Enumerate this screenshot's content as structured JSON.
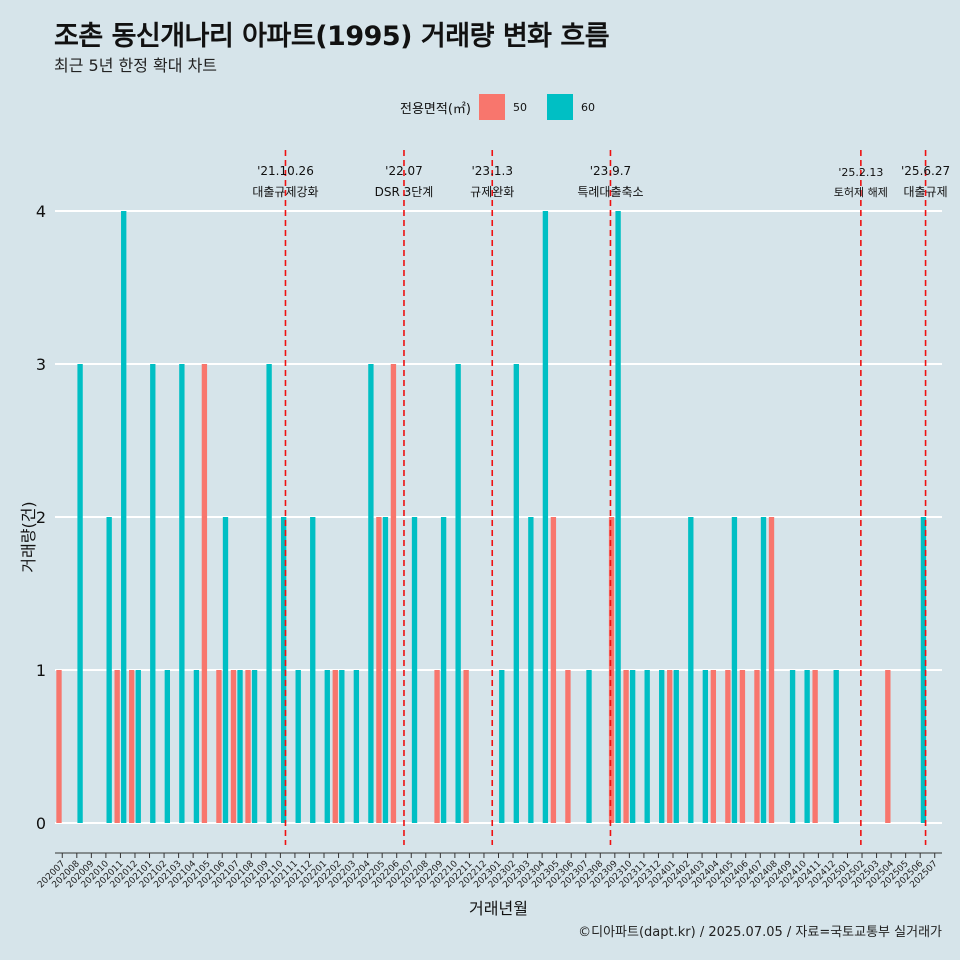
{
  "title": "조촌 동신개나리 아파트(1995) 거래량 변화 흐름",
  "subtitle": "최근 5년 한정 확대 차트",
  "caption": "©디아파트(dapt.kr) / 2025.07.05 / 자료=국토교통부 실거래가",
  "legend": {
    "title": "전용면적(㎡)",
    "items": [
      {
        "label": "50",
        "color": "#f8766d"
      },
      {
        "label": "60",
        "color": "#00bfc4"
      }
    ]
  },
  "chart_data": {
    "type": "bar",
    "title": "조촌 동신개나리 아파트(1995) 거래량 변화 흐름",
    "xlabel": "거래년월",
    "ylabel": "거래량(건)",
    "ylim": [
      0,
      4
    ],
    "yticks": [
      0,
      1,
      2,
      3,
      4
    ],
    "categories": [
      "202007",
      "202008",
      "202009",
      "202010",
      "202011",
      "202012",
      "202101",
      "202102",
      "202103",
      "202104",
      "202105",
      "202106",
      "202107",
      "202108",
      "202109",
      "202110",
      "202111",
      "202112",
      "202201",
      "202202",
      "202203",
      "202204",
      "202205",
      "202206",
      "202207",
      "202208",
      "202209",
      "202210",
      "202211",
      "202212",
      "202301",
      "202302",
      "202303",
      "202304",
      "202305",
      "202306",
      "202307",
      "202308",
      "202309",
      "202310",
      "202311",
      "202312",
      "202401",
      "202402",
      "202403",
      "202404",
      "202405",
      "202406",
      "202407",
      "202408",
      "202409",
      "202410",
      "202411",
      "202412",
      "202501",
      "202502",
      "202503",
      "202504",
      "202505",
      "202506",
      "202507"
    ],
    "series": [
      {
        "name": "50",
        "color": "#f8766d",
        "values": [
          1,
          0,
          0,
          0,
          1,
          1,
          0,
          0,
          0,
          0,
          3,
          1,
          1,
          1,
          0,
          0,
          0,
          0,
          0,
          1,
          0,
          0,
          2,
          3,
          0,
          0,
          1,
          0,
          1,
          0,
          0,
          0,
          0,
          0,
          2,
          1,
          0,
          0,
          2,
          1,
          0,
          0,
          1,
          0,
          0,
          1,
          1,
          1,
          1,
          2,
          0,
          0,
          1,
          0,
          0,
          0,
          0,
          1,
          0,
          0,
          0
        ]
      },
      {
        "name": "60",
        "color": "#00bfc4",
        "values": [
          0,
          3,
          0,
          2,
          4,
          1,
          3,
          1,
          3,
          1,
          0,
          2,
          1,
          1,
          3,
          2,
          1,
          2,
          1,
          1,
          1,
          3,
          2,
          0,
          2,
          0,
          2,
          3,
          0,
          0,
          1,
          3,
          2,
          4,
          0,
          0,
          1,
          0,
          4,
          1,
          1,
          1,
          1,
          2,
          1,
          0,
          2,
          0,
          2,
          0,
          1,
          1,
          0,
          1,
          0,
          0,
          0,
          0,
          0,
          2,
          0
        ]
      }
    ],
    "events": [
      {
        "date": "'21.10.26",
        "label": "대출규제강화",
        "month": "202110",
        "offset": 0.85
      },
      {
        "date": "'22.07",
        "label": "DSR 3단계",
        "month": "202207",
        "offset": 0.0
      },
      {
        "date": "'23.1.3",
        "label": "규제완화",
        "month": "202301",
        "offset": 0.07
      },
      {
        "date": "'23.9.7",
        "label": "특례대출축소",
        "month": "202309",
        "offset": 0.2
      },
      {
        "date": "'25.2.13",
        "label": "토허제 해제",
        "month": "202502",
        "offset": 0.42
      },
      {
        "date": "'25.6.27",
        "label": "대출규제",
        "month": "202506",
        "offset": 0.87
      }
    ]
  }
}
